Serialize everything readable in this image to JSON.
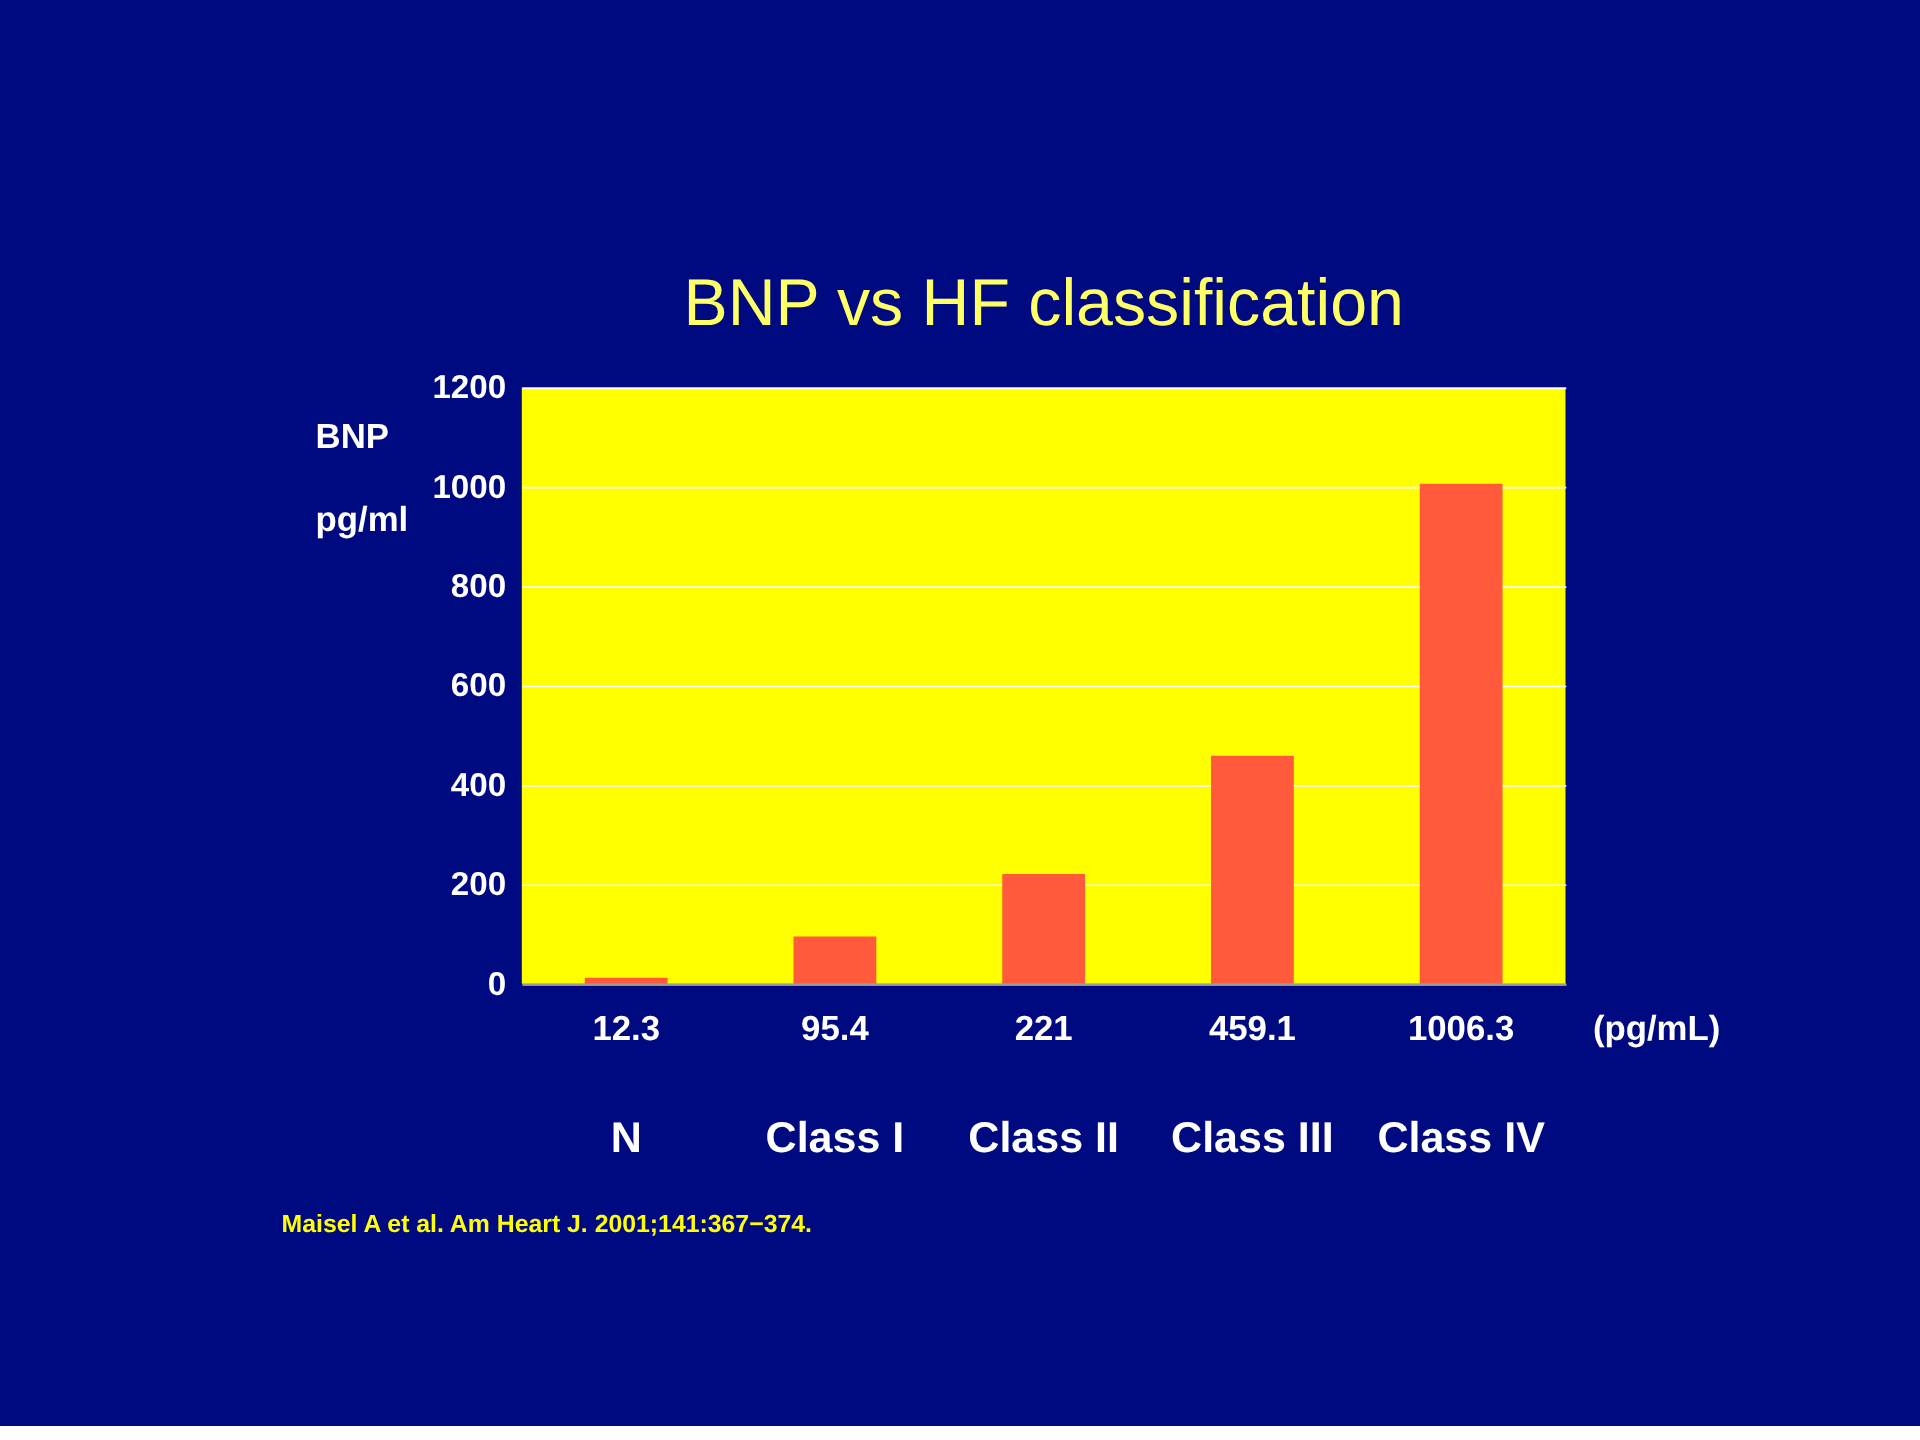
{
  "chart_data": {
    "type": "bar",
    "title": "BNP vs HF classification",
    "ylabel": "BNP pg/ml",
    "categories": [
      "N",
      "Class I",
      "Class II",
      "Class III",
      "Class IV"
    ],
    "values": [
      12.3,
      95.4,
      221,
      459.1,
      1006.3
    ],
    "value_labels": [
      "12.3",
      "95.4",
      "221",
      "459.1",
      "1006.3"
    ],
    "color": "#ff5a3c",
    "ylim": [
      0,
      1200
    ],
    "yticks": [
      0,
      200,
      400,
      600,
      800,
      1000,
      1200
    ],
    "grid": "y",
    "annotations": [
      "(pg/mL)",
      "Maisel A et al. Am Heart J. 2001;141:367−374."
    ]
  }
}
